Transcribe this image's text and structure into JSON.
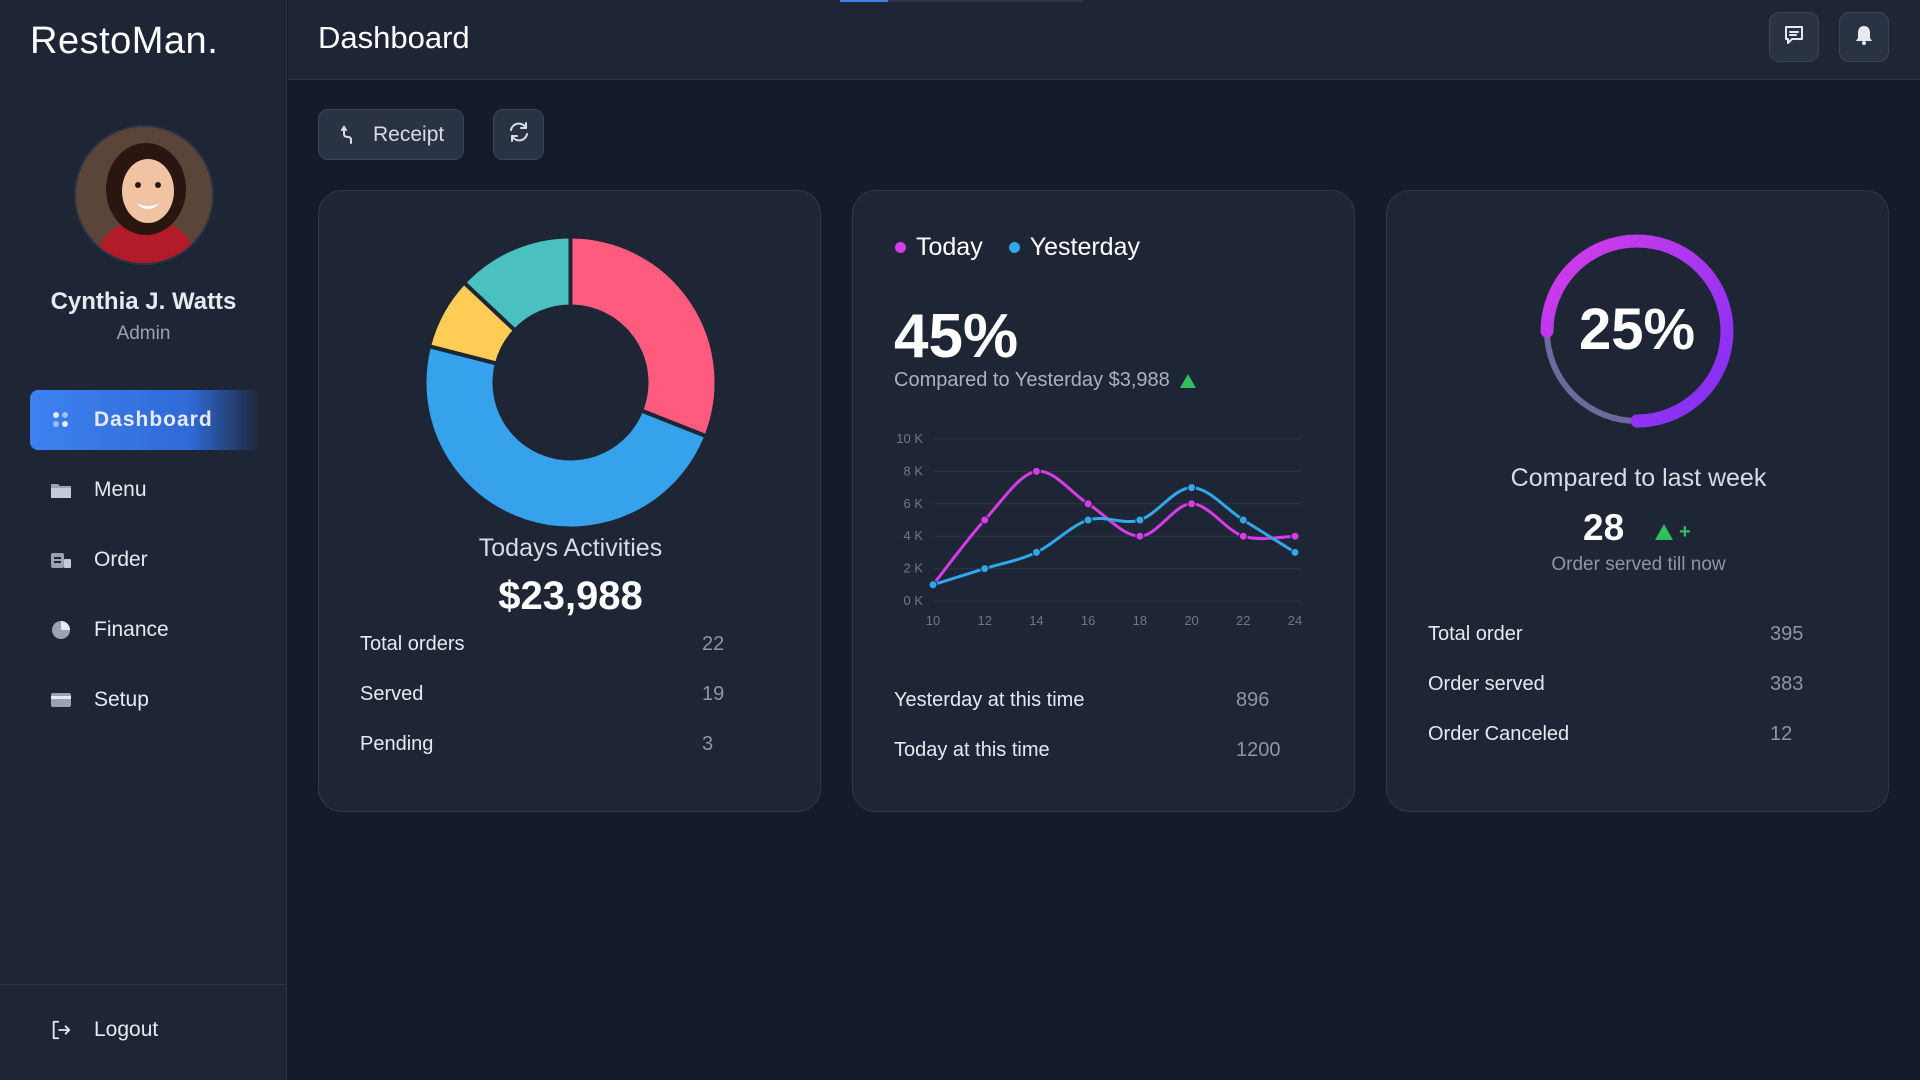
{
  "app": {
    "brand": "RestoMan."
  },
  "user": {
    "name": "Cynthia J. Watts",
    "role": "Admin"
  },
  "sidebar": {
    "items": [
      {
        "label": "Dashboard",
        "icon": "dashboard-icon",
        "active": true
      },
      {
        "label": "Menu",
        "icon": "menu-folder-icon",
        "active": false
      },
      {
        "label": "Order",
        "icon": "order-icon",
        "active": false
      },
      {
        "label": "Finance",
        "icon": "pie-chart-icon",
        "active": false
      },
      {
        "label": "Setup",
        "icon": "card-icon",
        "active": false
      }
    ],
    "logout": "Logout"
  },
  "header": {
    "title": "Dashboard"
  },
  "toolbar": {
    "receipt_label": "Receipt"
  },
  "activities": {
    "title": "Todays Activities",
    "amount": "$23,988",
    "rows": [
      {
        "label": "Total orders",
        "value": "22"
      },
      {
        "label": "Served",
        "value": "19"
      },
      {
        "label": "Pending",
        "value": "3"
      }
    ],
    "donut": [
      {
        "name": "pink",
        "value": 31,
        "color": "#ff5b7f"
      },
      {
        "name": "blue",
        "value": 48,
        "color": "#36a2eb"
      },
      {
        "name": "yellow",
        "value": 8,
        "color": "#ffcd56"
      },
      {
        "name": "teal",
        "value": 13,
        "color": "#4bc0c0"
      }
    ]
  },
  "comparison": {
    "legend_today": "Today",
    "legend_yesterday": "Yesterday",
    "percent": "45%",
    "compare_text": "Compared to Yesterday $3,988",
    "rows": [
      {
        "label": "Yesterday at this time",
        "value": "896"
      },
      {
        "label": "Today at this time",
        "value": "1200"
      }
    ]
  },
  "chart_data": {
    "type": "line",
    "x": [
      10,
      12,
      14,
      16,
      18,
      20,
      22,
      24
    ],
    "series": [
      {
        "name": "Today",
        "color": "#d63ce8",
        "values": [
          1000,
          5000,
          8000,
          6000,
          4000,
          6000,
          4000,
          4000
        ]
      },
      {
        "name": "Yesterday",
        "color": "#2fa8ec",
        "values": [
          1000,
          2000,
          3000,
          5000,
          5000,
          7000,
          5000,
          3000
        ]
      }
    ],
    "ylim": [
      0,
      10000
    ],
    "yticks": [
      "0 K",
      "2 K",
      "4 K",
      "6 K",
      "8 K",
      "10 K"
    ],
    "xticks": [
      "10",
      "12",
      "14",
      "16",
      "18",
      "20",
      "22",
      "24"
    ],
    "grid": true
  },
  "weekly": {
    "percent": "25%",
    "progress": 0.75,
    "title": "Compared to last week",
    "served_number": "28",
    "plus": "+",
    "served_caption": "Order served till now",
    "rows": [
      {
        "label": "Total order",
        "value": "395"
      },
      {
        "label": "Order served",
        "value": "383"
      },
      {
        "label": "Order Canceled",
        "value": "12"
      }
    ]
  },
  "colors": {
    "accent": "#3d82f0",
    "up": "#2fbf5f",
    "ring_start": "#7b2ff7",
    "ring_end": "#d63ce8"
  }
}
